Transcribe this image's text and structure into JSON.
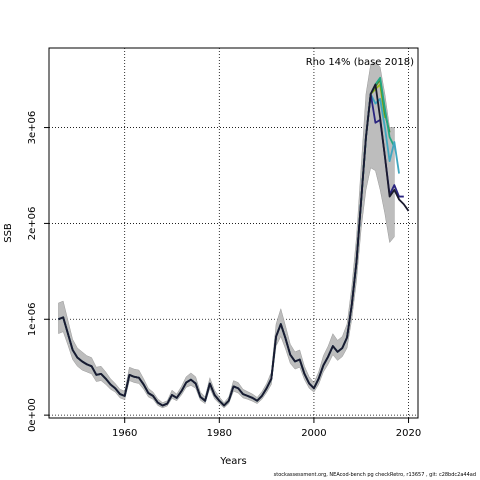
{
  "chart_data": {
    "type": "line",
    "xlabel": "Years",
    "ylabel": "SSB",
    "annotation": "Rho 14% (base 2018)",
    "xlim": [
      1944,
      2022
    ],
    "ylim": [
      -30000,
      3830000
    ],
    "grid": true,
    "grid_style": "dotted",
    "x_ticks": [
      1960,
      1980,
      2000,
      2020
    ],
    "y_ticks": [
      0,
      1000000,
      2000000,
      3000000
    ],
    "y_tick_labels": [
      "0e+00",
      "1e+06",
      "2e+06",
      "3e+06"
    ],
    "base": {
      "x": [
        1946,
        1947,
        1948,
        1949,
        1950,
        1951,
        1952,
        1953,
        1954,
        1955,
        1956,
        1957,
        1958,
        1959,
        1960,
        1961,
        1962,
        1963,
        1964,
        1965,
        1966,
        1967,
        1968,
        1969,
        1970,
        1971,
        1972,
        1973,
        1974,
        1975,
        1976,
        1977,
        1978,
        1979,
        1980,
        1981,
        1982,
        1983,
        1984,
        1985,
        1986,
        1987,
        1988,
        1989,
        1990,
        1991,
        1992,
        1993,
        1994,
        1995,
        1996,
        1997,
        1998,
        1999,
        2000,
        2001,
        2002,
        2003,
        2004,
        2005,
        2006,
        2007,
        2008,
        2009,
        2010,
        2011,
        2012,
        2013,
        2014,
        2015,
        2016,
        2017
      ],
      "y": [
        1000000,
        1020000,
        850000,
        680000,
        600000,
        560000,
        530000,
        510000,
        420000,
        430000,
        380000,
        320000,
        280000,
        220000,
        200000,
        420000,
        400000,
        390000,
        320000,
        230000,
        200000,
        130000,
        100000,
        120000,
        210000,
        180000,
        250000,
        340000,
        370000,
        330000,
        190000,
        150000,
        330000,
        210000,
        150000,
        100000,
        150000,
        300000,
        280000,
        220000,
        200000,
        180000,
        150000,
        200000,
        280000,
        380000,
        820000,
        950000,
        800000,
        630000,
        560000,
        580000,
        430000,
        330000,
        280000,
        380000,
        520000,
        610000,
        720000,
        660000,
        700000,
        810000,
        1150000,
        1600000,
        2250000,
        2900000,
        3350000,
        3450000,
        3100000,
        2900000,
        2650000,
        2750000
      ],
      "ci_lower": [
        850000,
        870000,
        730000,
        580000,
        510000,
        470000,
        450000,
        430000,
        350000,
        360000,
        320000,
        270000,
        240000,
        180000,
        160000,
        360000,
        340000,
        330000,
        270000,
        190000,
        165000,
        100000,
        75000,
        95000,
        175000,
        150000,
        210000,
        290000,
        310000,
        280000,
        155000,
        120000,
        280000,
        170000,
        120000,
        75000,
        120000,
        250000,
        230000,
        180000,
        165000,
        145000,
        120000,
        165000,
        235000,
        320000,
        720000,
        820000,
        690000,
        540000,
        480000,
        500000,
        370000,
        280000,
        240000,
        320000,
        450000,
        530000,
        630000,
        570000,
        610000,
        700000,
        1000000,
        1400000,
        1950000,
        2350000,
        2580000,
        2550000,
        2350000,
        2100000,
        1800000,
        1860000
      ],
      "ci_upper": [
        1170000,
        1190000,
        990000,
        790000,
        700000,
        660000,
        620000,
        600000,
        500000,
        510000,
        450000,
        380000,
        330000,
        270000,
        250000,
        500000,
        480000,
        470000,
        380000,
        280000,
        240000,
        170000,
        130000,
        150000,
        260000,
        220000,
        300000,
        400000,
        440000,
        400000,
        240000,
        190000,
        390000,
        260000,
        190000,
        130000,
        190000,
        360000,
        340000,
        270000,
        245000,
        220000,
        185000,
        245000,
        330000,
        450000,
        950000,
        1110000,
        930000,
        740000,
        660000,
        680000,
        510000,
        400000,
        340000,
        450000,
        620000,
        720000,
        850000,
        780000,
        820000,
        950000,
        1340000,
        1860000,
        2610000,
        3350000,
        3660000,
        3680000,
        3630000,
        3350000,
        3000000,
        3000000
      ]
    },
    "peels": [
      {
        "color": "#1a1a2e",
        "end": 2021,
        "y_tail": {
          "2014": 3100000,
          "2015": 2700000,
          "2016": 2280000,
          "2017": 2350000,
          "2018": 2250000,
          "2019": 2200000,
          "2020": 2130000
        }
      },
      {
        "color": "#2a2480",
        "end": 2020,
        "y_tail": {
          "2013": 3050000,
          "2014": 3080000,
          "2015": 2700000,
          "2016": 2300000,
          "2017": 2400000,
          "2018": 2280000,
          "2019": 2280000
        }
      },
      {
        "color": "#3fa7c0",
        "end": 2019,
        "y_tail": {
          "2013": 3250000,
          "2014": 3300000,
          "2015": 3000000,
          "2016": 2650000,
          "2017": 2850000,
          "2018": 2520000
        }
      },
      {
        "color": "#22a884",
        "end": 2018,
        "y_tail": {
          "2013": 3450000,
          "2014": 3520000,
          "2015": 3200000,
          "2016": 2900000,
          "2017": 2800000
        }
      },
      {
        "color": "#4c8a2a",
        "end": 2017,
        "y_tail": {
          "2013": 3430000,
          "2014": 3500000,
          "2015": 3150000,
          "2016": 2950000
        }
      },
      {
        "color": "#9ab81a",
        "end": 2016,
        "y_tail": {
          "2013": 3400000,
          "2014": 3450000,
          "2015": 3100000
        }
      }
    ]
  },
  "footer_text": "stockassessment.org,  NEAcod-bench  pg  checkRetro,  r13657 ,  git:  c28bdc2a44ad"
}
